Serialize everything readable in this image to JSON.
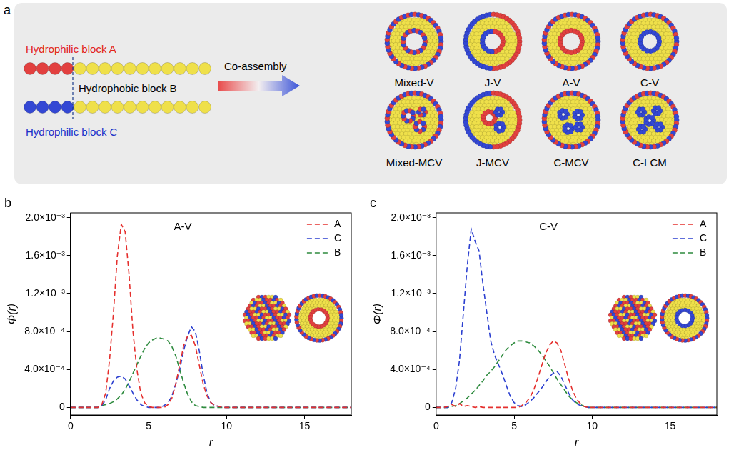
{
  "diagram": {
    "panel": "a",
    "block_a": "Hydrophilic block A",
    "block_b": "Hydrophobic block B",
    "block_c": "Hydrophilic block C",
    "arrow_label": "Co-assembly",
    "morphologies": [
      "Mixed-V",
      "J-V",
      "A-V",
      "C-V",
      "Mixed-MCV",
      "J-MCV",
      "C-MCV",
      "C-LCM"
    ]
  },
  "chart_data": [
    {
      "type": "line",
      "panel": "b",
      "title": "A-V",
      "x_label": "r",
      "y_label": "Φ(r)",
      "xlim": [
        0,
        18
      ],
      "xticks": [
        0,
        5,
        10,
        15
      ],
      "ylim": [
        -8e-05,
        0.00205
      ],
      "yticks": [
        0,
        {
          "value": 0.0004,
          "label": "4.0×10⁻⁴"
        },
        {
          "value": 0.0008,
          "label": "8.0×10⁻⁴"
        },
        {
          "value": 0.0012,
          "label": "1.2×10⁻³"
        },
        {
          "value": 0.0016,
          "label": "1.6×10⁻³"
        },
        {
          "value": 0.002,
          "label": "2.0×10⁻³"
        }
      ],
      "grid": false,
      "legend": "upper right",
      "x": [
        0,
        0.25,
        0.5,
        0.75,
        1,
        1.25,
        1.5,
        1.75,
        2,
        2.25,
        2.5,
        2.75,
        3,
        3.25,
        3.5,
        3.75,
        4,
        4.25,
        4.5,
        4.75,
        5,
        5.25,
        5.5,
        5.75,
        6,
        6.25,
        6.5,
        6.75,
        7,
        7.25,
        7.5,
        7.75,
        8,
        8.25,
        8.5,
        8.75,
        9,
        9.25,
        9.5,
        9.75,
        10,
        10.25,
        10.5,
        10.75,
        11,
        12,
        13,
        14,
        15,
        16,
        17,
        18
      ],
      "series": [
        {
          "name": "A",
          "color": "#e5302e",
          "line_style": "dashed",
          "values": [
            0,
            0,
            0,
            0,
            0,
            0,
            0,
            0,
            3e-05,
            0.00015,
            0.0005,
            0.001,
            0.0016,
            0.00193,
            0.00185,
            0.0014,
            0.0008,
            0.0004,
            0.00015,
            5e-05,
            1e-05,
            0,
            0,
            0,
            0,
            3e-05,
            0.0001,
            0.00025,
            0.00045,
            0.00065,
            0.00075,
            0.00076,
            0.00065,
            0.00045,
            0.00025,
            0.00012,
            5e-05,
            2e-05,
            1e-05,
            0,
            0,
            0,
            0,
            0,
            0,
            0,
            0,
            0,
            0,
            0,
            0,
            0
          ]
        },
        {
          "name": "C",
          "color": "#2b3fd0",
          "line_style": "dashed",
          "values": [
            0,
            0,
            0,
            0,
            0,
            0,
            0,
            0,
            2e-05,
            8e-05,
            0.0002,
            0.00028,
            0.00032,
            0.00033,
            0.0003,
            0.00023,
            0.00015,
            8e-05,
            3e-05,
            1e-05,
            0,
            0,
            0,
            0,
            2e-05,
            5e-05,
            0.00012,
            0.00025,
            0.0004,
            0.0006,
            0.00075,
            0.00085,
            0.0008,
            0.0006,
            0.00035,
            0.00015,
            5e-05,
            2e-05,
            1e-05,
            0,
            0,
            0,
            0,
            0,
            0,
            0,
            0,
            0,
            0,
            0,
            0,
            0
          ]
        },
        {
          "name": "B",
          "color": "#2e8b3e",
          "line_style": "dashed",
          "values": [
            0,
            0,
            0,
            0,
            0,
            0,
            0,
            0,
            2e-05,
            3e-05,
            4e-05,
            6e-05,
            9e-05,
            0.00013,
            0.00019,
            0.00027,
            0.00036,
            0.00045,
            0.00054,
            0.00062,
            0.00068,
            0.00071,
            0.00073,
            0.00073,
            0.00072,
            0.0007,
            0.00064,
            0.00054,
            0.0004,
            0.00026,
            0.00014,
            6e-05,
            2e-05,
            1e-05,
            0,
            0,
            0,
            0,
            0,
            0,
            0,
            0,
            0,
            0,
            0,
            0,
            0,
            0,
            0,
            0,
            0,
            0
          ]
        }
      ]
    },
    {
      "type": "line",
      "panel": "c",
      "title": "C-V",
      "x_label": "r",
      "y_label": "Φ(r)",
      "xlim": [
        0,
        18
      ],
      "xticks": [
        0,
        5,
        10,
        15
      ],
      "ylim": [
        -8e-05,
        0.00205
      ],
      "yticks": [
        0,
        {
          "value": 0.0004,
          "label": "4.0×10⁻⁴"
        },
        {
          "value": 0.0008,
          "label": "8.0×10⁻⁴"
        },
        {
          "value": 0.0012,
          "label": "1.2×10⁻³"
        },
        {
          "value": 0.0016,
          "label": "1.6×10⁻³"
        },
        {
          "value": 0.002,
          "label": "2.0×10⁻³"
        }
      ],
      "grid": false,
      "legend": "upper right",
      "x": [
        0,
        0.25,
        0.5,
        0.75,
        1,
        1.25,
        1.5,
        1.75,
        2,
        2.25,
        2.5,
        2.75,
        3,
        3.25,
        3.5,
        3.75,
        4,
        4.25,
        4.5,
        4.75,
        5,
        5.25,
        5.5,
        5.75,
        6,
        6.25,
        6.5,
        6.75,
        7,
        7.25,
        7.5,
        7.75,
        8,
        8.25,
        8.5,
        8.75,
        9,
        9.25,
        9.5,
        9.75,
        10,
        10.25,
        10.5,
        10.75,
        11,
        12,
        13,
        14,
        15,
        16,
        17,
        18
      ],
      "series": [
        {
          "name": "A",
          "color": "#e5302e",
          "line_style": "dashed",
          "values": [
            0,
            0,
            0,
            1e-05,
            3e-05,
            1e-05,
            4e-05,
            1e-05,
            2e-05,
            1e-05,
            0,
            1e-05,
            0,
            0,
            0,
            0,
            0,
            0,
            0,
            0,
            0,
            0,
            2e-05,
            5e-05,
            0.0001,
            0.00018,
            0.0003,
            0.00043,
            0.00056,
            0.00065,
            0.0007,
            0.00068,
            0.0006,
            0.00045,
            0.0003,
            0.00018,
            9e-05,
            4e-05,
            1e-05,
            0,
            0,
            0,
            0,
            0,
            0,
            0,
            0,
            0,
            0,
            0,
            0,
            0
          ]
        },
        {
          "name": "C",
          "color": "#2b3fd0",
          "line_style": "dashed",
          "values": [
            0,
            0,
            0,
            0,
            5e-05,
            0.0002,
            0.0005,
            0.001,
            0.0015,
            0.00188,
            0.00175,
            0.00165,
            0.0013,
            0.001,
            0.0007,
            0.00055,
            0.00045,
            0.00035,
            0.00023,
            0.00012,
            5e-05,
            2e-05,
            1e-05,
            3e-05,
            6e-05,
            0.0001,
            0.00015,
            0.0002,
            0.00026,
            0.00032,
            0.00036,
            0.00038,
            0.00033,
            0.00024,
            0.00015,
            8e-05,
            4e-05,
            2e-05,
            1e-05,
            0,
            0,
            0,
            0,
            0,
            0,
            0,
            0,
            0,
            0,
            0,
            0,
            0
          ]
        },
        {
          "name": "B",
          "color": "#2e8b3e",
          "line_style": "dashed",
          "values": [
            0,
            0,
            0,
            0,
            1e-05,
            2e-05,
            4e-05,
            7e-05,
            0.0001,
            0.00014,
            0.00018,
            0.00023,
            0.00028,
            0.00034,
            0.00038,
            0.00043,
            0.00049,
            0.00055,
            0.00061,
            0.00065,
            0.00068,
            0.0007,
            0.0007,
            0.00069,
            0.00068,
            0.00065,
            0.00061,
            0.00056,
            0.0005,
            0.00044,
            0.00037,
            0.0003,
            0.00024,
            0.00018,
            0.00012,
            8e-05,
            5e-05,
            3e-05,
            1e-05,
            0,
            0,
            0,
            0,
            0,
            0,
            0,
            0,
            0,
            0,
            0,
            0,
            0
          ]
        }
      ]
    }
  ]
}
